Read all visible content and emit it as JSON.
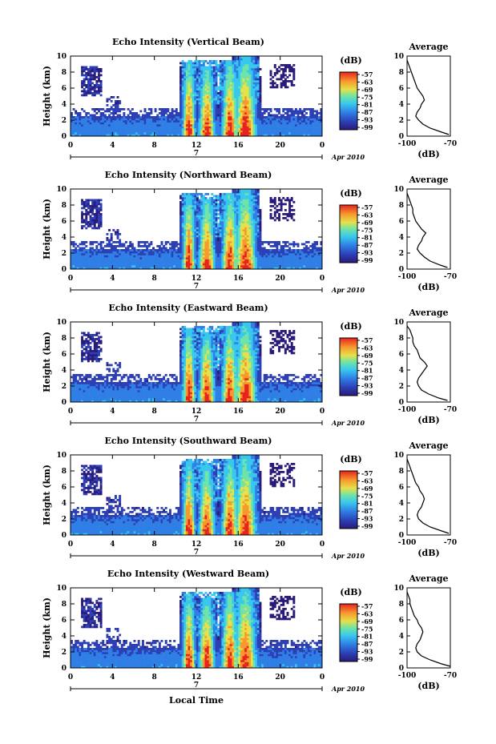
{
  "chart_data": [
    {
      "type": "heatmap",
      "title": "Echo Intensity (Vertical Beam)",
      "ylabel": "Height (km)",
      "xlim": [
        0,
        24
      ],
      "ylim": [
        0,
        10
      ],
      "xticks": [
        "0",
        "4",
        "8",
        "12",
        "16",
        "20",
        "0"
      ],
      "yticks": [
        "0",
        "2",
        "4",
        "6",
        "8",
        "10"
      ],
      "date_tick": "7",
      "date_label": "Apr 2010",
      "colorbar": {
        "unit": "(dB)",
        "ticks": [
          "-57",
          "-63",
          "-69",
          "-75",
          "-81",
          "-87",
          "-93",
          "-99"
        ]
      },
      "average": {
        "title": "Average",
        "xlabel": "(dB)",
        "xlim": [
          -100,
          -70
        ],
        "xticks": [
          "-100",
          "-70"
        ],
        "ylim": [
          0,
          10
        ],
        "yticks": [
          "0",
          "2",
          "4",
          "6",
          "8",
          "10"
        ],
        "heights": [
          0.2,
          0.5,
          1,
          1.5,
          2,
          2.5,
          3,
          3.5,
          4,
          4.5,
          5,
          5.5,
          6,
          6.5,
          7,
          7.5,
          8,
          8.5,
          9,
          9.5
        ],
        "values": [
          -71,
          -76,
          -84,
          -89,
          -92,
          -94,
          -93,
          -91,
          -90,
          -88,
          -89,
          -91,
          -93,
          -94,
          -95,
          -96,
          -97,
          -98,
          -99,
          -100
        ]
      }
    },
    {
      "type": "heatmap",
      "title": "Echo Intensity (Northward Beam)",
      "ylabel": "Height (km)",
      "xlim": [
        0,
        24
      ],
      "ylim": [
        0,
        10
      ],
      "xticks": [
        "0",
        "4",
        "8",
        "12",
        "16",
        "20",
        "0"
      ],
      "yticks": [
        "0",
        "2",
        "4",
        "6",
        "8",
        "10"
      ],
      "date_tick": "7",
      "date_label": "Apr 2010",
      "colorbar": {
        "unit": "(dB)",
        "ticks": [
          "-57",
          "-63",
          "-69",
          "-75",
          "-81",
          "-87",
          "-93",
          "-99"
        ]
      },
      "average": {
        "title": "Average",
        "xlabel": "(dB)",
        "xlim": [
          -100,
          -70
        ],
        "xticks": [
          "-100",
          "-70"
        ],
        "ylim": [
          0,
          10
        ],
        "yticks": [
          "0",
          "2",
          "4",
          "6",
          "8",
          "10"
        ],
        "heights": [
          0.2,
          0.5,
          1,
          1.5,
          2,
          2.5,
          3,
          3.5,
          4,
          4.5,
          5,
          5.5,
          6,
          6.5,
          7,
          7.5,
          8,
          8.5,
          9,
          9.5
        ],
        "values": [
          -72,
          -77,
          -84,
          -88,
          -91,
          -93,
          -92,
          -90,
          -89,
          -87,
          -90,
          -92,
          -94,
          -95,
          -96,
          -96,
          -97,
          -98,
          -99,
          -100
        ]
      }
    },
    {
      "type": "heatmap",
      "title": "Echo Intensity (Eastward Beam)",
      "ylabel": "Height (km)",
      "xlim": [
        0,
        24
      ],
      "ylim": [
        0,
        10
      ],
      "xticks": [
        "0",
        "4",
        "8",
        "12",
        "16",
        "20",
        "0"
      ],
      "yticks": [
        "0",
        "2",
        "4",
        "6",
        "8",
        "10"
      ],
      "date_tick": "7",
      "date_label": "Apr 2010",
      "colorbar": {
        "unit": "(dB)",
        "ticks": [
          "-57",
          "-63",
          "-69",
          "-75",
          "-81",
          "-87",
          "-93",
          "-99"
        ]
      },
      "average": {
        "title": "Average",
        "xlabel": "(dB)",
        "xlim": [
          -100,
          -70
        ],
        "xticks": [
          "-100",
          "-70"
        ],
        "ylim": [
          0,
          10
        ],
        "yticks": [
          "0",
          "2",
          "4",
          "6",
          "8",
          "10"
        ],
        "heights": [
          0.2,
          0.5,
          1,
          1.5,
          2,
          2.5,
          3,
          3.5,
          4,
          4.5,
          5,
          5.5,
          6,
          6.5,
          7,
          7.5,
          8,
          8.5,
          9,
          9.5
        ],
        "values": [
          -72,
          -78,
          -85,
          -90,
          -92,
          -93,
          -92,
          -90,
          -88,
          -86,
          -88,
          -91,
          -92,
          -93,
          -95,
          -96,
          -96,
          -97,
          -98,
          -100
        ]
      }
    },
    {
      "type": "heatmap",
      "title": "Echo Intensity (Southward Beam)",
      "ylabel": "Height (km)",
      "xlim": [
        0,
        24
      ],
      "ylim": [
        0,
        10
      ],
      "xticks": [
        "0",
        "4",
        "8",
        "12",
        "16",
        "20",
        "0"
      ],
      "yticks": [
        "0",
        "2",
        "4",
        "6",
        "8",
        "10"
      ],
      "date_tick": "7",
      "date_label": "Apr 2010",
      "colorbar": {
        "unit": "(dB)",
        "ticks": [
          "-57",
          "-63",
          "-69",
          "-75",
          "-81",
          "-87",
          "-93",
          "-99"
        ]
      },
      "average": {
        "title": "Average",
        "xlabel": "(dB)",
        "xlim": [
          -100,
          -70
        ],
        "xticks": [
          "-100",
          "-70"
        ],
        "ylim": [
          0,
          10
        ],
        "yticks": [
          "0",
          "2",
          "4",
          "6",
          "8",
          "10"
        ],
        "heights": [
          0.2,
          0.5,
          1,
          1.5,
          2,
          2.5,
          3,
          3.5,
          4,
          4.5,
          5,
          5.5,
          6,
          6.5,
          7,
          7.5,
          8,
          8.5,
          9,
          9.5
        ],
        "values": [
          -71,
          -76,
          -84,
          -89,
          -92,
          -93,
          -92,
          -90,
          -89,
          -88,
          -89,
          -91,
          -92,
          -94,
          -95,
          -96,
          -97,
          -98,
          -99,
          -100
        ]
      }
    },
    {
      "type": "heatmap",
      "title": "Echo Intensity (Westward Beam)",
      "ylabel": "Height (km)",
      "xlabel": "Local Time",
      "xlim": [
        0,
        24
      ],
      "ylim": [
        0,
        10
      ],
      "xticks": [
        "0",
        "4",
        "8",
        "12",
        "16",
        "20",
        "0"
      ],
      "yticks": [
        "0",
        "2",
        "4",
        "6",
        "8",
        "10"
      ],
      "date_tick": "7",
      "date_label": "Apr 2010",
      "colorbar": {
        "unit": "(dB)",
        "ticks": [
          "-57",
          "-63",
          "-69",
          "-75",
          "-81",
          "-87",
          "-93",
          "-99"
        ]
      },
      "average": {
        "title": "Average",
        "xlabel": "(dB)",
        "xlim": [
          -100,
          -70
        ],
        "xticks": [
          "-100",
          "-70"
        ],
        "ylim": [
          0,
          10
        ],
        "yticks": [
          "0",
          "2",
          "4",
          "6",
          "8",
          "10"
        ],
        "heights": [
          0.2,
          0.5,
          1,
          1.5,
          2,
          2.5,
          3,
          3.5,
          4,
          4.5,
          5,
          5.5,
          6,
          6.5,
          7,
          7.5,
          8,
          8.5,
          9,
          9.5
        ],
        "values": [
          -70,
          -76,
          -84,
          -90,
          -93,
          -94,
          -93,
          -91,
          -90,
          -89,
          -90,
          -92,
          -93,
          -95,
          -96,
          -97,
          -98,
          -98,
          -99,
          -100
        ]
      }
    }
  ]
}
